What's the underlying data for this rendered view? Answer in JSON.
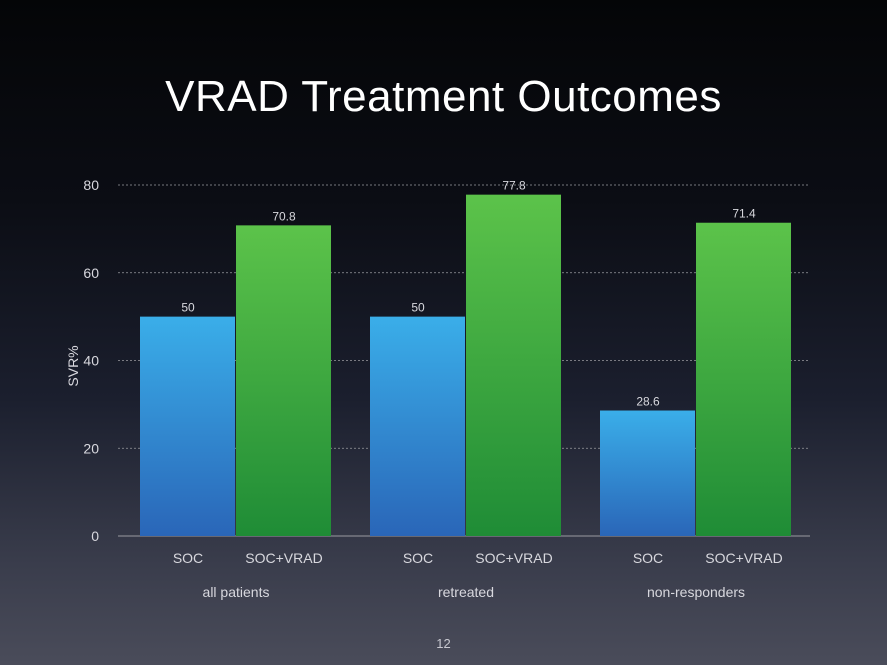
{
  "slide": {
    "title": "VRAD Treatment Outcomes",
    "page_number": "12"
  },
  "colors": {
    "soc_top": "#3aaee9",
    "soc_bottom": "#2a66b8",
    "vrad_top": "#5cc34a",
    "vrad_bottom": "#1f8c36",
    "gridline": "#9a9aa0",
    "text": "#d8d8de"
  },
  "chart_data": {
    "type": "bar",
    "ylabel": "SVR%",
    "xlabel": "",
    "ylim": [
      0,
      80
    ],
    "yticks": [
      0,
      20,
      40,
      60,
      80
    ],
    "grid": true,
    "groups": [
      {
        "name": "all patients",
        "bars": [
          {
            "label": "SOC",
            "value": 50,
            "value_label": "50"
          },
          {
            "label": "SOC+VRAD",
            "value": 70.8,
            "value_label": "70.8"
          }
        ]
      },
      {
        "name": "retreated",
        "bars": [
          {
            "label": "SOC",
            "value": 50,
            "value_label": "50"
          },
          {
            "label": "SOC+VRAD",
            "value": 77.8,
            "value_label": "77.8"
          }
        ]
      },
      {
        "name": "non-responders",
        "bars": [
          {
            "label": "SOC",
            "value": 28.6,
            "value_label": "28.6"
          },
          {
            "label": "SOC+VRAD",
            "value": 71.4,
            "value_label": "71.4"
          }
        ]
      }
    ]
  }
}
